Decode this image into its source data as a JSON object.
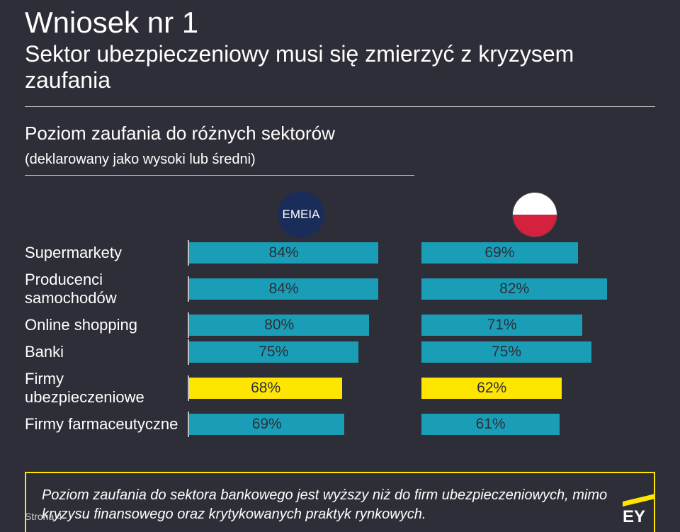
{
  "title": "Wniosek nr 1",
  "subtitle": "Sektor ubezpieczeniowy musi się zmierzyć z kryzysem zaufania",
  "section_head": "Poziom zaufania do różnych sektorów",
  "section_sub": "(deklarowany jako wysoki lub średni)",
  "col_emeia_label": "EMEIA",
  "chart": {
    "type": "bar-horizontal-grouped",
    "bar_default_color": "#1a9eb8",
    "bar_highlight_color": "#ffe600",
    "bar_text_color_default": "#2e2e38",
    "bar_text_color_highlight": "#2e2e38",
    "max_value": 100,
    "rows": [
      {
        "label": "Supermarkety",
        "emeia": 84,
        "pl": 69,
        "highlight": false
      },
      {
        "label": "Producenci samochodów",
        "emeia": 84,
        "pl": 82,
        "highlight": false
      },
      {
        "label": "Online shopping",
        "emeia": 80,
        "pl": 71,
        "highlight": false
      },
      {
        "label": "Banki",
        "emeia": 75,
        "pl": 75,
        "highlight": false
      },
      {
        "label": "Firmy ubezpieczeniowe",
        "emeia": 68,
        "pl": 62,
        "highlight": true
      },
      {
        "label": "Firmy farmaceutyczne",
        "emeia": 69,
        "pl": 61,
        "highlight": false
      }
    ]
  },
  "note": "Poziom zaufania do sektora bankowego jest wyższy niż do firm ubezpieczeniowych, mimo kryzysu finansowego oraz krytykowanych praktyk rynkowych.",
  "page_label": "Strona 4",
  "colors": {
    "background": "#2e2e38",
    "accent_yellow": "#ffe600",
    "text": "#ffffff",
    "rule": "#c4c4c4",
    "emeia_badge": "#1a2d5a"
  }
}
